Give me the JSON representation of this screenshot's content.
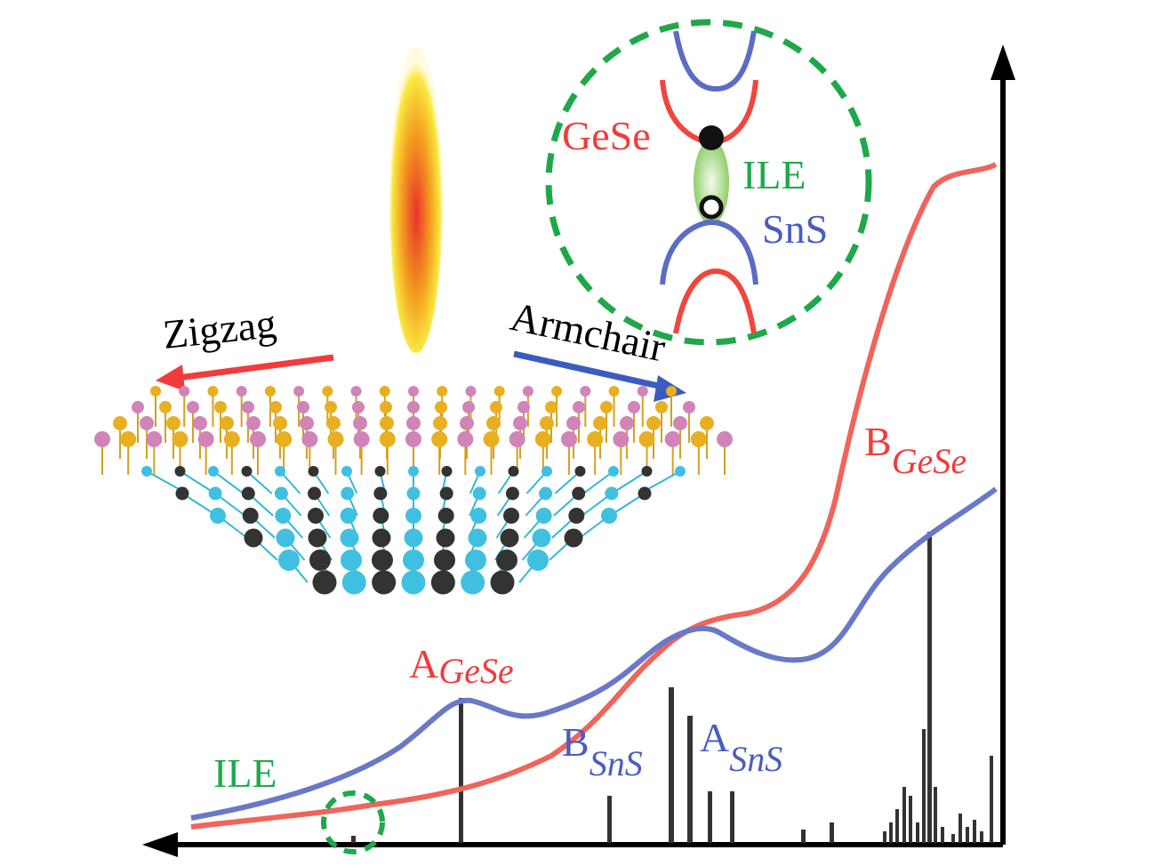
{
  "inset": {
    "top_label": "GeSe",
    "middle_label": "ILE",
    "bottom_label": "SnS"
  },
  "directions": {
    "zigzag": "Zigzag",
    "armchair": "Armchair"
  },
  "peaks": [
    {
      "letter": "A",
      "subscript": "GeSe"
    },
    {
      "letter": "B",
      "subscript": "GeSe"
    },
    {
      "letter": "B",
      "subscript": "SnS"
    },
    {
      "letter": "A",
      "subscript": "SnS"
    }
  ],
  "ile_label": "ILE"
}
